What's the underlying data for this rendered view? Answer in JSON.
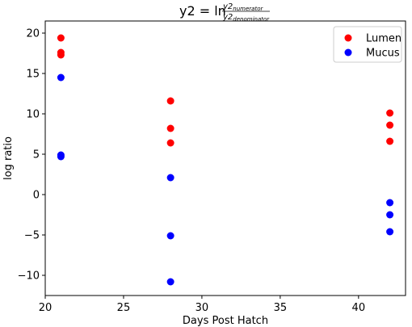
{
  "chart_data": {
    "type": "scatter",
    "title": {
      "lhs": "y2 = ln",
      "numerator": "y2",
      "numerator_subscript": "numerator",
      "denominator": "y2",
      "denominator_subscript": "denominator"
    },
    "xlabel": "Days Post Hatch",
    "ylabel": "log ratio",
    "xlim": [
      20,
      43
    ],
    "ylim": [
      -12.5,
      21.5
    ],
    "xticks": [
      20,
      25,
      30,
      35,
      40
    ],
    "yticks": [
      -10,
      -5,
      0,
      5,
      10,
      15,
      20
    ],
    "grid": false,
    "legend_position": "top-right",
    "series": [
      {
        "name": "Lumen",
        "color": "#ff0000",
        "points": [
          {
            "x": 21,
            "y": 19.4
          },
          {
            "x": 21,
            "y": 17.6
          },
          {
            "x": 21,
            "y": 17.3
          },
          {
            "x": 28,
            "y": 11.6
          },
          {
            "x": 28,
            "y": 8.2
          },
          {
            "x": 28,
            "y": 6.4
          },
          {
            "x": 42,
            "y": 10.1
          },
          {
            "x": 42,
            "y": 8.6
          },
          {
            "x": 42,
            "y": 6.6
          }
        ]
      },
      {
        "name": "Mucus",
        "color": "#0000ff",
        "points": [
          {
            "x": 21,
            "y": 14.5
          },
          {
            "x": 21,
            "y": 4.9
          },
          {
            "x": 21,
            "y": 4.7
          },
          {
            "x": 28,
            "y": 2.1
          },
          {
            "x": 28,
            "y": -5.1
          },
          {
            "x": 28,
            "y": -10.8
          },
          {
            "x": 42,
            "y": -1.0
          },
          {
            "x": 42,
            "y": -2.5
          },
          {
            "x": 42,
            "y": -4.6
          }
        ]
      }
    ]
  }
}
